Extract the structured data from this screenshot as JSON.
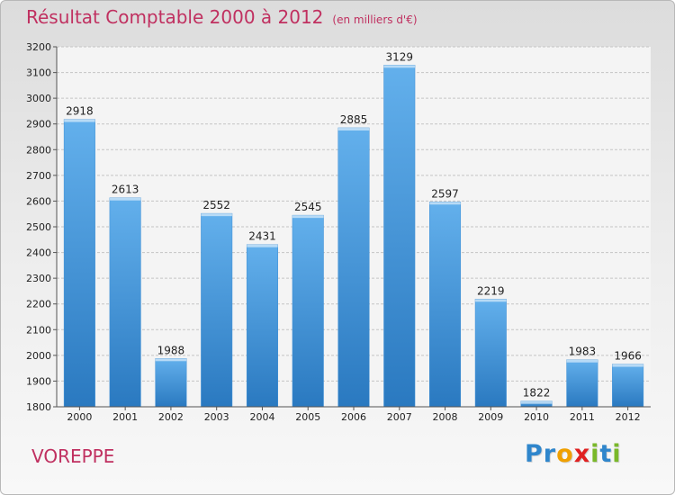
{
  "chart_data": {
    "type": "bar",
    "title": "Résultat Comptable 2000 à 2012",
    "subtitle": "(en milliers d'€)",
    "categories": [
      "2000",
      "2001",
      "2002",
      "2003",
      "2004",
      "2005",
      "2006",
      "2007",
      "2008",
      "2009",
      "2010",
      "2011",
      "2012"
    ],
    "values": [
      2918,
      2613,
      1988,
      2552,
      2431,
      2545,
      2885,
      3129,
      2597,
      2219,
      1822,
      1983,
      1966
    ],
    "ylim": [
      1800,
      3200
    ],
    "yticks": [
      1800,
      1900,
      2000,
      2100,
      2200,
      2300,
      2400,
      2500,
      2600,
      2700,
      2800,
      2900,
      3000,
      3100,
      3200
    ],
    "grid": true,
    "xlabel": "",
    "ylabel": "",
    "bar_color": "#3d8fd6",
    "bar_color_light": "#63b0ec",
    "bar_color_dark": "#2a79c0"
  },
  "footer": {
    "commune": "VOREPPE",
    "brand_letters": [
      {
        "ch": "P",
        "color": "#2f86cc"
      },
      {
        "ch": "r",
        "color": "#2f86cc"
      },
      {
        "ch": "o",
        "color": "#f0a000"
      },
      {
        "ch": "x",
        "color": "#e02020"
      },
      {
        "ch": "i",
        "color": "#7ab82a"
      },
      {
        "ch": "t",
        "color": "#2f86cc"
      },
      {
        "ch": "i",
        "color": "#7ab82a"
      }
    ]
  }
}
